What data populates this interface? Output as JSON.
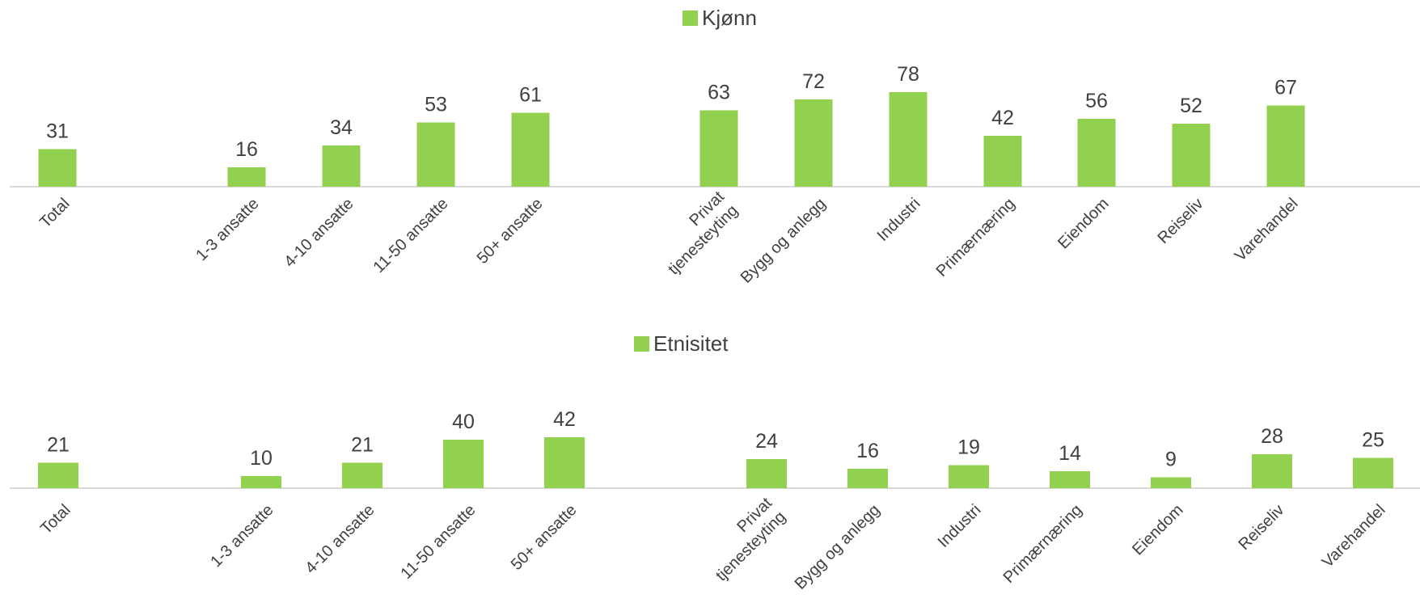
{
  "chart_data": [
    {
      "type": "bar",
      "legend": "Kjønn",
      "legend_position": "top",
      "grid": false,
      "color": "#92d050",
      "categories": [
        "Total",
        "1-3 ansatte",
        "4-10 ansatte",
        "11-50 ansatte",
        "50+ ansatte",
        "Privat tjenesteyting",
        "Bygg og anlegg",
        "Industri",
        "Primærnæring",
        "Eiendom",
        "Reiseliv",
        "Varehandel"
      ],
      "series": [
        {
          "name": "Kjønn",
          "values": [
            31,
            16,
            34,
            53,
            61,
            63,
            72,
            78,
            42,
            56,
            52,
            67
          ]
        }
      ],
      "ylim": [
        0,
        100
      ]
    },
    {
      "type": "bar",
      "legend": "Etnisitet",
      "legend_position": "top",
      "grid": false,
      "color": "#92d050",
      "categories": [
        "Total",
        "1-3 ansatte",
        "4-10 ansatte",
        "11-50 ansatte",
        "50+ ansatte",
        "Privat tjenesteyting",
        "Bygg og anlegg",
        "Industri",
        "Primærnæring",
        "Eiendom",
        "Reiseliv",
        "Varehandel"
      ],
      "series": [
        {
          "name": "Etnisitet",
          "values": [
            21,
            10,
            21,
            40,
            42,
            24,
            16,
            19,
            14,
            9,
            28,
            25
          ]
        }
      ],
      "ylim": [
        0,
        100
      ]
    }
  ]
}
